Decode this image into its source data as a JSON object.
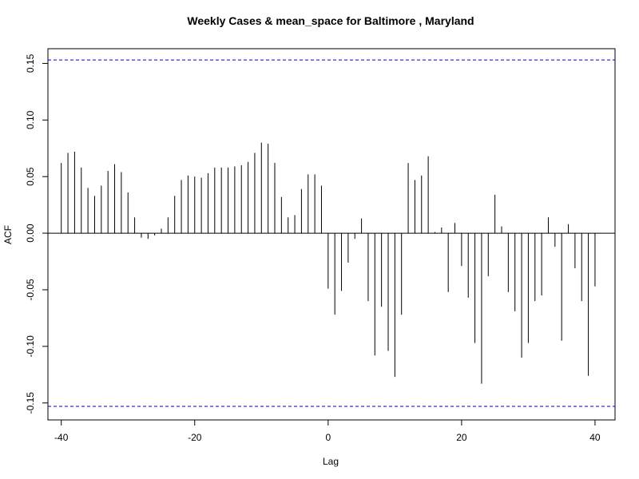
{
  "chart_data": {
    "type": "bar",
    "title": "Weekly Cases & mean_space for Baltimore , Maryland",
    "xlabel": "Lag",
    "ylabel": "ACF",
    "xlim": [
      -42,
      43
    ],
    "ylim": [
      -0.165,
      0.163
    ],
    "x_ticks": [
      -40,
      -20,
      0,
      20,
      40
    ],
    "y_ticks": [
      -0.15,
      -0.1,
      -0.05,
      0.0,
      0.05,
      0.1,
      0.15
    ],
    "x_tick_labels": [
      "-40",
      "-20",
      "0",
      "20",
      "40"
    ],
    "y_tick_labels": [
      "-0.15",
      "-0.10",
      "-0.05",
      "0.00",
      "0.05",
      "0.10",
      "0.15"
    ],
    "confidence_bound": 0.153,
    "grid": false,
    "colors": {
      "bars": "#000000",
      "zero_line": "#000000",
      "confidence": "#0000cc",
      "frame": "#000000"
    },
    "x": [
      -40,
      -39,
      -38,
      -37,
      -36,
      -35,
      -34,
      -33,
      -32,
      -31,
      -30,
      -29,
      -28,
      -27,
      -26,
      -25,
      -24,
      -23,
      -22,
      -21,
      -20,
      -19,
      -18,
      -17,
      -16,
      -15,
      -14,
      -13,
      -12,
      -11,
      -10,
      -9,
      -8,
      -7,
      -6,
      -5,
      -4,
      -3,
      -2,
      -1,
      0,
      1,
      2,
      3,
      4,
      5,
      6,
      7,
      8,
      9,
      10,
      11,
      12,
      13,
      14,
      15,
      16,
      17,
      18,
      19,
      20,
      21,
      22,
      23,
      24,
      25,
      26,
      27,
      28,
      29,
      30,
      31,
      32,
      33,
      34,
      35,
      36,
      37,
      38,
      39,
      40
    ],
    "values": [
      0.062,
      0.071,
      0.072,
      0.058,
      0.04,
      0.033,
      0.042,
      0.055,
      0.061,
      0.054,
      0.036,
      0.014,
      -0.004,
      -0.005,
      -0.002,
      0.004,
      0.014,
      0.033,
      0.047,
      0.051,
      0.05,
      0.049,
      0.053,
      0.058,
      0.058,
      0.058,
      0.059,
      0.06,
      0.063,
      0.071,
      0.08,
      0.079,
      0.062,
      0.032,
      0.014,
      0.016,
      0.039,
      0.052,
      0.052,
      0.042,
      -0.049,
      -0.072,
      -0.051,
      -0.026,
      -0.005,
      0.013,
      -0.06,
      -0.108,
      -0.065,
      -0.104,
      -0.127,
      -0.072,
      0.062,
      0.047,
      0.051,
      0.068,
      0.001,
      0.005,
      -0.052,
      0.009,
      -0.029,
      -0.057,
      -0.097,
      -0.133,
      -0.038,
      0.034,
      0.006,
      -0.052,
      -0.069,
      -0.11,
      -0.097,
      -0.06,
      -0.055,
      0.014,
      -0.012,
      -0.095,
      0.008,
      -0.031,
      -0.06,
      -0.126,
      -0.047
    ]
  }
}
